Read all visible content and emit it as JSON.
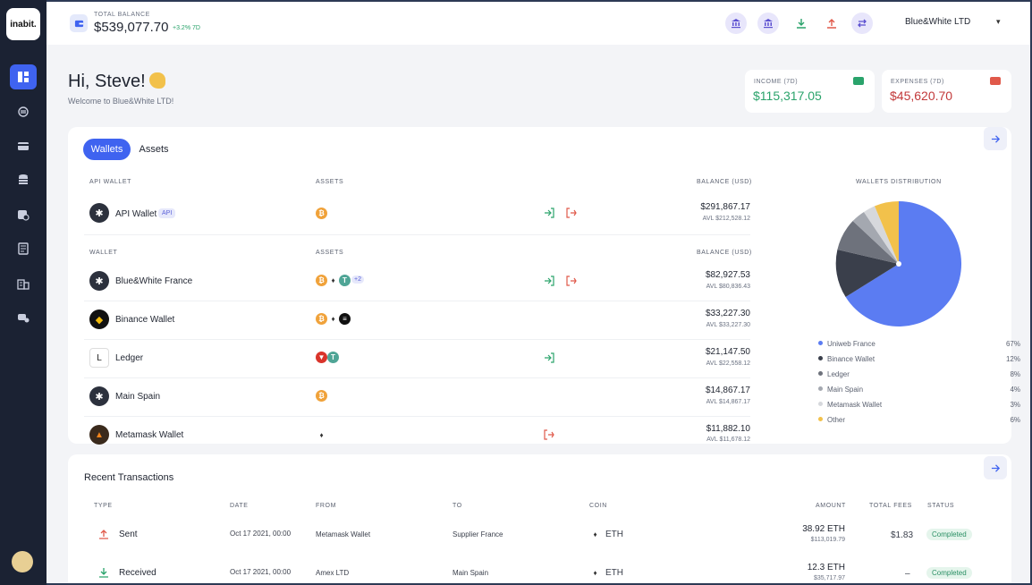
{
  "app": {
    "logo": "inabit."
  },
  "sidebar": {
    "items": [
      {
        "name": "dashboard-icon",
        "active": true
      },
      {
        "name": "exchange-icon"
      },
      {
        "name": "card-icon"
      },
      {
        "name": "database-icon"
      },
      {
        "name": "wallet-settings-icon"
      },
      {
        "name": "ledger-book-icon"
      },
      {
        "name": "building-icon"
      },
      {
        "name": "support-icon"
      }
    ]
  },
  "topbar": {
    "total_balance_label": "TOTAL BALANCE",
    "total_balance_value": "$539,077.70",
    "change": "+3.2% 7D",
    "organization": "Blue&White LTD",
    "caret": "▾"
  },
  "greeting": {
    "title": "Hi, Steve!",
    "subtitle": "Welcome to Blue&White LTD!"
  },
  "stats": {
    "income": {
      "label": "INCOME (7D)",
      "value": "$115,317.05"
    },
    "expenses": {
      "label": "EXPENSES (7D)",
      "value": "$45,620.70"
    }
  },
  "wallets": {
    "tabs": [
      "Wallets",
      "Assets"
    ],
    "api_header": {
      "wallet": "API WALLET",
      "assets": "ASSETS",
      "balance": "BALANCE (USD)"
    },
    "wallet_header": {
      "wallet": "WALLET",
      "assets": "ASSETS",
      "balance": "BALANCE (USD)"
    },
    "api_wallet": {
      "name": "API Wallet",
      "badge": "API",
      "balance": "$291,867.17",
      "avl": "AVL $212,528.12"
    },
    "rows": [
      {
        "name": "Blue&White France",
        "balance": "$82,927.53",
        "avl": "AVL $80,836.43",
        "more": "+2"
      },
      {
        "name": "Binance Wallet",
        "balance": "$33,227.30",
        "avl": "AVL $33,227.30"
      },
      {
        "name": "Ledger",
        "balance": "$21,147.50",
        "avl": "AVL $22,558.12"
      },
      {
        "name": "Main Spain",
        "balance": "$14,867.17",
        "avl": "AVL $14,867.17"
      },
      {
        "name": "Metamask Wallet",
        "balance": "$11,882.10",
        "avl": "AVL $11,678.12"
      }
    ]
  },
  "distribution": {
    "title": "WALLETS DISTRIBUTION",
    "legend": [
      {
        "name": "Uniweb France",
        "pct": "67%",
        "color": "#5b7cf2"
      },
      {
        "name": "Binance Wallet",
        "pct": "12%",
        "color": "#3a3f4b"
      },
      {
        "name": "Ledger",
        "pct": "8%",
        "color": "#6e727c"
      },
      {
        "name": "Main Spain",
        "pct": "4%",
        "color": "#a4a8b0"
      },
      {
        "name": "Metamask Wallet",
        "pct": "3%",
        "color": "#d6d8dc"
      },
      {
        "name": "Other",
        "pct": "6%",
        "color": "#f2c14b"
      }
    ]
  },
  "transactions": {
    "title": "Recent Transactions",
    "headers": {
      "type": "TYPE",
      "date": "DATE",
      "from": "FROM",
      "to": "TO",
      "coin": "COIN",
      "amount": "AMOUNT",
      "fees": "TOTAL FEES",
      "status": "STATUS"
    },
    "rows": [
      {
        "type": "Sent",
        "date": "Oct 17 2021, 00:00",
        "from": "Metamask Wallet",
        "to": "Supplier France",
        "coin": "ETH",
        "amount": "38.92 ETH",
        "amount_usd": "$113,019.79",
        "fees": "$1.83",
        "status": "Completed"
      },
      {
        "type": "Received",
        "date": "Oct 17 2021, 00:00",
        "from": "Amex LTD",
        "to": "Main Spain",
        "coin": "ETH",
        "amount": "12.3 ETH",
        "amount_usd": "$35,717.97",
        "fees": "–",
        "status": "Completed"
      }
    ]
  }
}
